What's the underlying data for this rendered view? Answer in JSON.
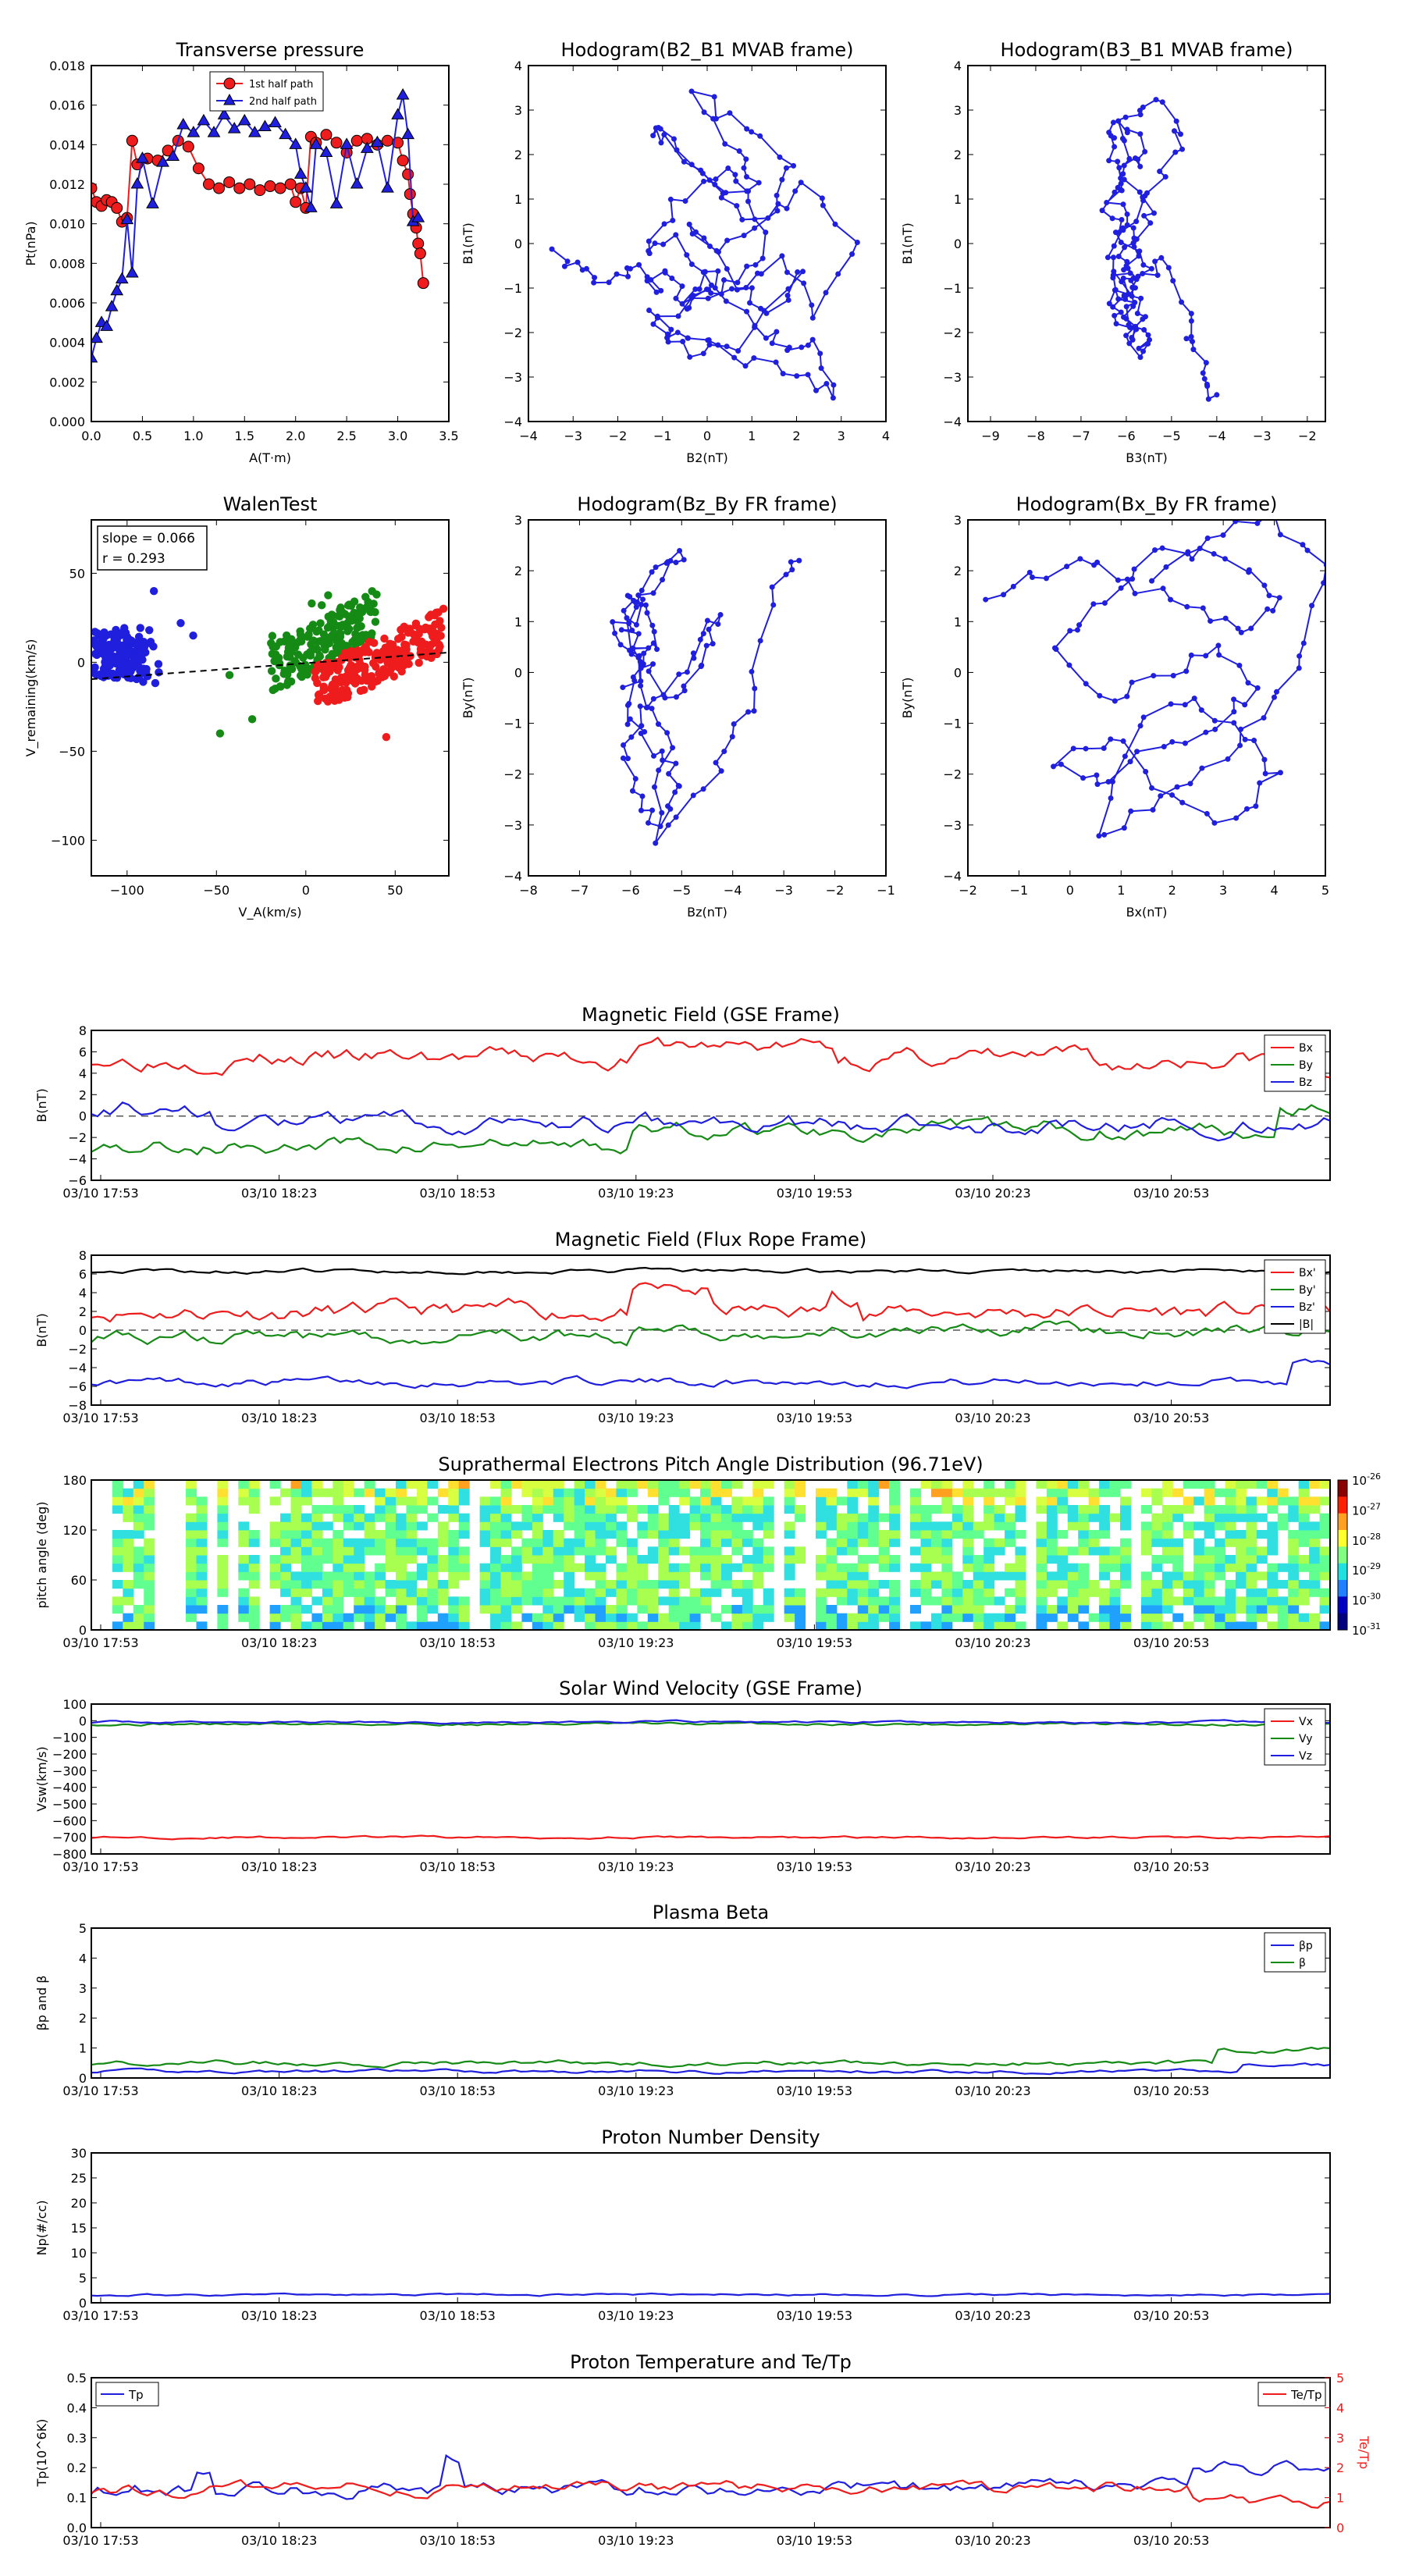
{
  "top_panels": [
    {
      "title": "Transverse pressure",
      "xlabel": "A(T·m)",
      "ylabel": "Pt(nPa)",
      "xticks": [
        "0.0",
        "0.5",
        "1.0",
        "1.5",
        "2.0",
        "2.5",
        "3.0",
        "3.5"
      ],
      "yticks": [
        "0.000",
        "0.002",
        "0.004",
        "0.006",
        "0.008",
        "0.010",
        "0.012",
        "0.014",
        "0.016",
        "0.018"
      ],
      "legend": [
        "1st half path",
        "2nd half path"
      ]
    },
    {
      "title": "Hodogram(B2_B1 MVAB frame)",
      "xlabel": "B2(nT)",
      "ylabel": "B1(nT)",
      "xticks": [
        "−4",
        "−3",
        "−2",
        "−1",
        "0",
        "1",
        "2",
        "3",
        "4"
      ],
      "yticks": [
        "−4",
        "−3",
        "−2",
        "−1",
        "0",
        "1",
        "2",
        "3",
        "4"
      ]
    },
    {
      "title": "Hodogram(B3_B1 MVAB frame)",
      "xlabel": "B3(nT)",
      "ylabel": "B1(nT)",
      "xticks": [
        "−9",
        "−8",
        "−7",
        "−6",
        "−5",
        "−4",
        "−3",
        "−2"
      ],
      "yticks": [
        "−4",
        "−3",
        "−2",
        "−1",
        "0",
        "1",
        "2",
        "3",
        "4"
      ]
    },
    {
      "title": "WalenTest",
      "xlabel": "V_A(km/s)",
      "ylabel": "V_remaining(km/s)",
      "xticks": [
        "−100",
        "−50",
        "0",
        "50"
      ],
      "yticks": [
        "−100",
        "−50",
        "0",
        "50"
      ],
      "annotation": [
        "slope = 0.066",
        "r = 0.293"
      ]
    },
    {
      "title": "Hodogram(Bz_By FR frame)",
      "xlabel": "Bz(nT)",
      "ylabel": "By(nT)",
      "xticks": [
        "−8",
        "−7",
        "−6",
        "−5",
        "−4",
        "−3",
        "−2",
        "−1"
      ],
      "yticks": [
        "−4",
        "−3",
        "−2",
        "−1",
        "0",
        "1",
        "2",
        "3"
      ]
    },
    {
      "title": "Hodogram(Bx_By FR frame)",
      "xlabel": "Bx(nT)",
      "ylabel": "By(nT)",
      "xticks": [
        "−2",
        "−1",
        "0",
        "1",
        "2",
        "3",
        "4",
        "5"
      ],
      "yticks": [
        "−4",
        "−3",
        "−2",
        "−1",
        "0",
        "1",
        "2",
        "3"
      ]
    }
  ],
  "time_ticks": [
    "03/10 17:53",
    "03/10 18:23",
    "03/10 18:53",
    "03/10 19:23",
    "03/10 19:53",
    "03/10 20:23",
    "03/10 20:53"
  ],
  "ts_panels": [
    {
      "title": "Magnetic Field (GSE Frame)",
      "ylabel": "B(nT)",
      "yticks": [
        "−6",
        "−4",
        "−2",
        "0",
        "2",
        "4",
        "6",
        "8"
      ],
      "legend": [
        "Bx",
        "By",
        "Bz"
      ]
    },
    {
      "title": "Magnetic Field (Flux Rope Frame)",
      "ylabel": "B(nT)",
      "yticks": [
        "−8",
        "−6",
        "−4",
        "−2",
        "0",
        "2",
        "4",
        "6",
        "8"
      ],
      "legend": [
        "Bx'",
        "By'",
        "Bz'",
        "|B|"
      ]
    },
    {
      "title": "Suprathermal Electrons Pitch Angle Distribution (96.71eV)",
      "ylabel": "pitch angle (deg)",
      "yticks": [
        "0",
        "60",
        "120",
        "180"
      ],
      "colorbar": [
        "10^-26",
        "10^-27",
        "10^-28",
        "10^-29",
        "10^-30",
        "10^-31"
      ]
    },
    {
      "title": "Solar Wind Velocity (GSE Frame)",
      "ylabel": "Vsw(km/s)",
      "yticks": [
        "−800",
        "−700",
        "−600",
        "−500",
        "−400",
        "−300",
        "−200",
        "−100",
        "0",
        "100"
      ],
      "legend": [
        "Vx",
        "Vy",
        "Vz"
      ]
    },
    {
      "title": "Plasma Beta",
      "ylabel": "βp and β",
      "yticks": [
        "0",
        "1",
        "2",
        "3",
        "4",
        "5"
      ],
      "legend": [
        "βp",
        "β"
      ]
    },
    {
      "title": "Proton Number Density",
      "ylabel": "Np(#/cc)",
      "yticks": [
        "0",
        "5",
        "10",
        "15",
        "20",
        "25",
        "30"
      ]
    },
    {
      "title": "Proton Temperature and Te/Tp",
      "ylabel": "Tp(10^6K)",
      "ylabel_right": "Te/Tp",
      "yticks": [
        "0.0",
        "0.1",
        "0.2",
        "0.3",
        "0.4",
        "0.5"
      ],
      "yticks_right": [
        "0",
        "1",
        "2",
        "3",
        "4",
        "5"
      ],
      "legend_left": [
        "Tp"
      ],
      "legend_right": [
        "Te/Tp"
      ]
    }
  ],
  "colors": {
    "red": "#ee1c1c",
    "blue": "#1f1fdd",
    "green": "#158a15",
    "black": "#000000",
    "navy": "#0c0c8c"
  },
  "chart_data": [
    {
      "type": "line",
      "title": "Transverse pressure",
      "xlabel": "A(T·m)",
      "ylabel": "Pt(nPa)",
      "xlim": [
        0,
        3.5
      ],
      "ylim": [
        0,
        0.018
      ],
      "series": [
        {
          "name": "1st half path",
          "x": [
            0.0,
            0.05,
            0.1,
            0.15,
            0.2,
            0.25,
            0.3,
            0.35,
            0.4,
            0.45,
            0.55,
            0.65,
            0.75,
            0.85,
            0.95,
            1.05,
            1.15,
            1.25,
            1.35,
            1.45,
            1.55,
            1.65,
            1.75,
            1.85,
            1.95,
            2.0,
            2.05,
            2.1,
            2.15,
            2.2,
            2.3,
            2.4,
            2.5,
            2.6,
            2.7,
            2.8,
            2.9,
            3.0,
            3.05,
            3.1,
            3.12,
            3.15,
            3.18,
            3.2,
            3.22,
            3.25
          ],
          "y": [
            0.0118,
            0.0111,
            0.0109,
            0.0112,
            0.0111,
            0.0108,
            0.0101,
            0.0103,
            0.0142,
            0.013,
            0.0133,
            0.0132,
            0.0137,
            0.0142,
            0.0139,
            0.0128,
            0.012,
            0.0118,
            0.0121,
            0.0118,
            0.012,
            0.0117,
            0.0119,
            0.0118,
            0.012,
            0.0111,
            0.0118,
            0.0108,
            0.0144,
            0.0141,
            0.0145,
            0.0141,
            0.0136,
            0.0142,
            0.0143,
            0.014,
            0.0142,
            0.0141,
            0.0132,
            0.0125,
            0.0115,
            0.0105,
            0.0098,
            0.009,
            0.0085,
            0.007
          ]
        },
        {
          "name": "2nd half path",
          "x": [
            0.0,
            0.05,
            0.1,
            0.15,
            0.2,
            0.25,
            0.3,
            0.35,
            0.4,
            0.45,
            0.5,
            0.6,
            0.7,
            0.8,
            0.9,
            1.0,
            1.1,
            1.2,
            1.3,
            1.4,
            1.5,
            1.6,
            1.7,
            1.8,
            1.9,
            2.0,
            2.05,
            2.1,
            2.15,
            2.2,
            2.3,
            2.4,
            2.5,
            2.6,
            2.7,
            2.8,
            2.9,
            3.0,
            3.05,
            3.1,
            3.15,
            3.2
          ],
          "y": [
            0.0032,
            0.0042,
            0.005,
            0.0048,
            0.0058,
            0.0066,
            0.0072,
            0.0102,
            0.0075,
            0.012,
            0.0133,
            0.011,
            0.0131,
            0.0134,
            0.015,
            0.0146,
            0.0152,
            0.0146,
            0.0155,
            0.0148,
            0.0152,
            0.0146,
            0.0149,
            0.0151,
            0.0145,
            0.014,
            0.0125,
            0.0118,
            0.0108,
            0.014,
            0.0136,
            0.011,
            0.014,
            0.012,
            0.0138,
            0.0141,
            0.0118,
            0.0155,
            0.0165,
            0.0145,
            0.0101,
            0.0103
          ]
        }
      ]
    },
    {
      "type": "line",
      "title": "Hodogram(B2_B1 MVAB frame)",
      "xlabel": "B2(nT)",
      "ylabel": "B1(nT)",
      "xlim": [
        -4,
        4
      ],
      "ylim": [
        -4,
        4
      ],
      "series": [
        {
          "x": [
            -3.3,
            -2.9,
            -2.2,
            -1.6,
            -1.3,
            -0.9,
            -0.4,
            0.1,
            -0.7,
            -1.3,
            -0.8,
            0.3,
            1.1,
            0.6,
            -0.2,
            0.9,
            1.8,
            1.4,
            0.3,
            -0.5,
            0.7,
            1.5,
            2.1,
            0.6,
            -0.5,
            -1.0,
            0.4,
            1.7,
            2.5,
            3.3,
            2.1,
            1.2,
            0.2,
            -0.8,
            -1.2,
            -0.3,
            0.8,
            1.3,
            0.5,
            -0.4,
            0.1,
            1.0,
            1.8,
            2.4,
            2.9,
            2.0,
            0.9,
            -0.1,
            -0.9,
            -1.3
          ],
          "y": [
            -0.3,
            -0.6,
            -0.8,
            -0.4,
            -1.2,
            -0.6,
            -1.5,
            -0.8,
            0.1,
            -0.3,
            0.9,
            1.6,
            1.2,
            2.0,
            3.3,
            2.6,
            1.9,
            0.7,
            -0.2,
            0.4,
            -0.9,
            -1.6,
            -0.5,
            -2.3,
            -2.4,
            -1.7,
            -1.1,
            -0.4,
            -1.7,
            0.1,
            1.3,
            0.6,
            1.0,
            2.3,
            2.7,
            1.8,
            1.1,
            -0.2,
            -0.9,
            -1.3,
            -0.5,
            -1.8,
            -2.5,
            -2.3,
            -3.3,
            -3.0,
            -2.6,
            -2.2,
            -2.0,
            -1.5
          ]
        }
      ]
    },
    {
      "type": "line",
      "title": "Hodogram(B3_B1 MVAB frame)",
      "xlabel": "B3(nT)",
      "ylabel": "B1(nT)",
      "xlim": [
        -9.5,
        -1.6
      ],
      "ylim": [
        -4,
        4
      ],
      "series": [
        {
          "x": [
            -6.2,
            -5.9,
            -6.1,
            -5.8,
            -6.3,
            -6.0,
            -5.7,
            -6.2,
            -5.9,
            -6.4,
            -6.1,
            -5.6,
            -6.0,
            -6.3,
            -5.8,
            -5.5,
            -6.1,
            -6.4,
            -5.9,
            -5.2,
            -4.8,
            -5.3,
            -6.0,
            -6.5,
            -6.1,
            -5.4,
            -5.7,
            -6.2,
            -5.9,
            -5.5,
            -5.8,
            -6.0,
            -5.6,
            -5.3,
            -4.7,
            -4.5,
            -4.2,
            -4.0
          ],
          "y": [
            -1.2,
            -0.8,
            -0.3,
            0.4,
            1.0,
            1.6,
            2.2,
            2.6,
            1.9,
            0.9,
            0.2,
            -0.5,
            -1.1,
            -1.6,
            -2.1,
            -1.8,
            -1.0,
            -0.2,
            0.6,
            1.4,
            2.4,
            3.3,
            2.9,
            2.3,
            1.5,
            0.7,
            -0.1,
            -0.8,
            -1.5,
            -2.2,
            -2.5,
            -1.7,
            -0.9,
            -0.3,
            -1.6,
            -2.3,
            -3.1,
            -3.4
          ]
        }
      ]
    },
    {
      "type": "scatter",
      "title": "WalenTest",
      "xlabel": "V_A(km/s)",
      "ylabel": "V_remaining(km/s)",
      "xlim": [
        -120,
        80
      ],
      "ylim": [
        -120,
        80
      ],
      "series": [
        {
          "name": "blue cluster",
          "x_range": [
            -115,
            -65
          ],
          "y_range": [
            -16,
            22
          ]
        },
        {
          "name": "green cluster",
          "x_range": [
            -55,
            45
          ],
          "y_range": [
            -45,
            45
          ]
        },
        {
          "name": "red cluster",
          "x_range": [
            -10,
            78
          ],
          "y_range": [
            -42,
            38
          ]
        },
        {
          "name": "fit",
          "x": [
            -120,
            80
          ],
          "y": [
            -9.5,
            5.5
          ]
        }
      ],
      "annotation": [
        "slope = 0.066",
        "r = 0.293"
      ]
    },
    {
      "type": "line",
      "title": "Hodogram(Bz_By FR frame)",
      "xlabel": "Bz(nT)",
      "ylabel": "By(nT)",
      "xlim": [
        -8,
        -1
      ],
      "ylim": [
        -4,
        3
      ],
      "series": [
        {
          "x": [
            -6.0,
            -5.8,
            -6.1,
            -5.9,
            -5.5,
            -5.7,
            -6.1,
            -5.8,
            -5.3,
            -5.0,
            -5.4,
            -5.9,
            -6.2,
            -5.7,
            -5.1,
            -4.7,
            -4.3,
            -4.6,
            -5.2,
            -5.8,
            -6.3,
            -5.9,
            -5.4,
            -5.0,
            -5.6,
            -6.0,
            -5.7,
            -5.3,
            -5.5,
            -4.5,
            -4.0,
            -3.6,
            -3.2,
            -2.7
          ],
          "y": [
            -0.2,
            0.5,
            1.0,
            1.5,
            0.9,
            0.3,
            -0.5,
            -1.2,
            -1.8,
            -2.3,
            -3.0,
            -2.4,
            -1.6,
            -0.8,
            -0.1,
            0.6,
            1.1,
            0.2,
            -0.5,
            0.2,
            0.8,
            1.4,
            2.0,
            2.5,
            1.7,
            0.9,
            -0.6,
            -1.5,
            -3.2,
            -2.2,
            -1.3,
            -0.4,
            1.8,
            2.2
          ]
        }
      ]
    },
    {
      "type": "line",
      "title": "Hodogram(Bx_By FR frame)",
      "xlabel": "Bx(nT)",
      "ylabel": "By(nT)",
      "xlim": [
        -2,
        5
      ],
      "ylim": [
        -4,
        3
      ],
      "series": [
        {
          "x": [
            -1.5,
            -0.6,
            0.4,
            1.4,
            2.6,
            3.5,
            4.2,
            3.4,
            2.2,
            1.1,
            0.3,
            -0.4,
            0.8,
            1.9,
            2.8,
            3.6,
            2.9,
            1.7,
            0.6,
            -0.3,
            0.9,
            2.0,
            3.1,
            4.1,
            3.5,
            2.4,
            1.3,
            0.5,
            1.6,
            2.7,
            3.7,
            4.6,
            5.0,
            3.9,
            2.8,
            1.6
          ],
          "y": [
            1.5,
            1.9,
            2.2,
            1.6,
            1.2,
            0.9,
            1.4,
            2.0,
            2.5,
            2.0,
            1.0,
            0.3,
            -0.5,
            -0.1,
            0.6,
            -0.3,
            -1.1,
            -1.6,
            -2.1,
            -1.8,
            -1.2,
            -2.4,
            -3.0,
            -2.1,
            -1.3,
            -0.6,
            -0.9,
            -3.2,
            -2.6,
            -1.9,
            -0.8,
            0.2,
            2.2,
            3.0,
            2.6,
            1.8
          ]
        }
      ]
    },
    {
      "type": "line",
      "title": "Magnetic Field (GSE Frame)",
      "ylabel": "B(nT)",
      "ylim": [
        -6,
        8
      ],
      "x_range": [
        "03/10 17:53",
        "03/10 21:05"
      ],
      "series": [
        {
          "name": "Bx",
          "approx": "5.5 ±1, ~6.5 between 19:10–19:40, dips to ~3 near 21:00"
        },
        {
          "name": "By",
          "approx": "-2 to -4, rising to ~-1 after 19:23, ~1 at end"
        },
        {
          "name": "Bz",
          "approx": "~1 at start, ~-0.5 to -2 thereafter"
        }
      ]
    },
    {
      "type": "line",
      "title": "Magnetic Field (Flux Rope Frame)",
      "ylabel": "B(nT)",
      "ylim": [
        -8,
        8
      ],
      "series": [
        {
          "name": "Bx'",
          "approx": "~2.5, peaks ~4.5 near 19:23 and 19:53"
        },
        {
          "name": "By'",
          "approx": "~0 to -2"
        },
        {
          "name": "Bz'",
          "approx": "~-5.5"
        },
        {
          "name": "|B|",
          "approx": "~6.3"
        }
      ]
    },
    {
      "type": "heatmap",
      "title": "Suprathermal Electrons Pitch Angle Distribution (96.71eV)",
      "ylabel": "pitch angle (deg)",
      "ylim": [
        0,
        180
      ],
      "colorbar": "10^-31 to 10^-26",
      "note": "mostly 10^-29–10^-28 with white gaps; 10^-27–10^-26 near 150–180 deg"
    },
    {
      "type": "line",
      "title": "Solar Wind Velocity (GSE Frame)",
      "ylabel": "Vsw(km/s)",
      "ylim": [
        -800,
        100
      ],
      "series": [
        {
          "name": "Vx",
          "approx": "~-700"
        },
        {
          "name": "Vy",
          "approx": "~-20"
        },
        {
          "name": "Vz",
          "approx": "~-10"
        }
      ]
    },
    {
      "type": "line",
      "title": "Plasma Beta",
      "ylabel": "βp and β",
      "ylim": [
        0,
        5
      ],
      "series": [
        {
          "name": "βp",
          "approx": "~0.2, up to 0.5 at end"
        },
        {
          "name": "β",
          "approx": "~0.5, up to 1.1 at end"
        }
      ]
    },
    {
      "type": "line",
      "title": "Proton Number Density",
      "ylabel": "Np(#/cc)",
      "ylim": [
        0,
        30
      ],
      "series": [
        {
          "approx": "~1.5–2"
        }
      ]
    },
    {
      "type": "line",
      "title": "Proton Temperature and Te/Tp",
      "ylabel": "Tp(10^6K)",
      "ylim": [
        0,
        0.5
      ],
      "ylim_right": [
        0,
        5
      ],
      "series": [
        {
          "name": "Tp",
          "approx": "~0.13, spikes 0.24 near 18:53, rises to 0.25 near 21:00"
        },
        {
          "name": "Te/Tp",
          "approx": "~1.3, drops to ~0.8 at end"
        }
      ]
    }
  ]
}
